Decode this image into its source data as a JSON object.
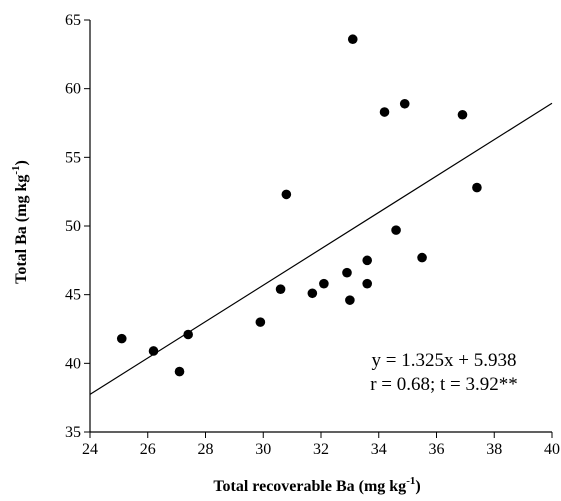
{
  "chart_data": {
    "type": "scatter",
    "title": "",
    "xlabel": {
      "main": "Total recoverable Ba (mg kg",
      "sup": "-1",
      "end": ")"
    },
    "ylabel": {
      "main": "Total Ba (mg kg",
      "sup": "-1",
      "end": ")"
    },
    "xlim": [
      24,
      40
    ],
    "ylim": [
      35,
      65
    ],
    "xticks": [
      "24",
      "26",
      "28",
      "30",
      "32",
      "34",
      "36",
      "38",
      "40"
    ],
    "yticks": [
      "35",
      "40",
      "45",
      "50",
      "55",
      "60",
      "65"
    ],
    "grid": false,
    "points": [
      {
        "x": 25.1,
        "y": 41.8
      },
      {
        "x": 26.2,
        "y": 40.9
      },
      {
        "x": 27.1,
        "y": 39.4
      },
      {
        "x": 27.4,
        "y": 42.1
      },
      {
        "x": 29.9,
        "y": 43.0
      },
      {
        "x": 30.6,
        "y": 45.4
      },
      {
        "x": 30.8,
        "y": 52.3
      },
      {
        "x": 31.7,
        "y": 45.1
      },
      {
        "x": 32.1,
        "y": 45.8
      },
      {
        "x": 32.9,
        "y": 46.6
      },
      {
        "x": 33.0,
        "y": 44.6
      },
      {
        "x": 33.1,
        "y": 63.6
      },
      {
        "x": 33.6,
        "y": 45.8
      },
      {
        "x": 33.6,
        "y": 47.5
      },
      {
        "x": 34.2,
        "y": 58.3
      },
      {
        "x": 34.6,
        "y": 49.7
      },
      {
        "x": 34.9,
        "y": 58.9
      },
      {
        "x": 35.5,
        "y": 47.7
      },
      {
        "x": 36.9,
        "y": 58.1
      },
      {
        "x": 37.4,
        "y": 52.8
      }
    ],
    "regression": {
      "slope": 1.325,
      "intercept": 5.938
    },
    "annotations": {
      "equation": "y = 1.325x + 5.938",
      "stats": "r = 0.68; t = 3.92**"
    }
  }
}
